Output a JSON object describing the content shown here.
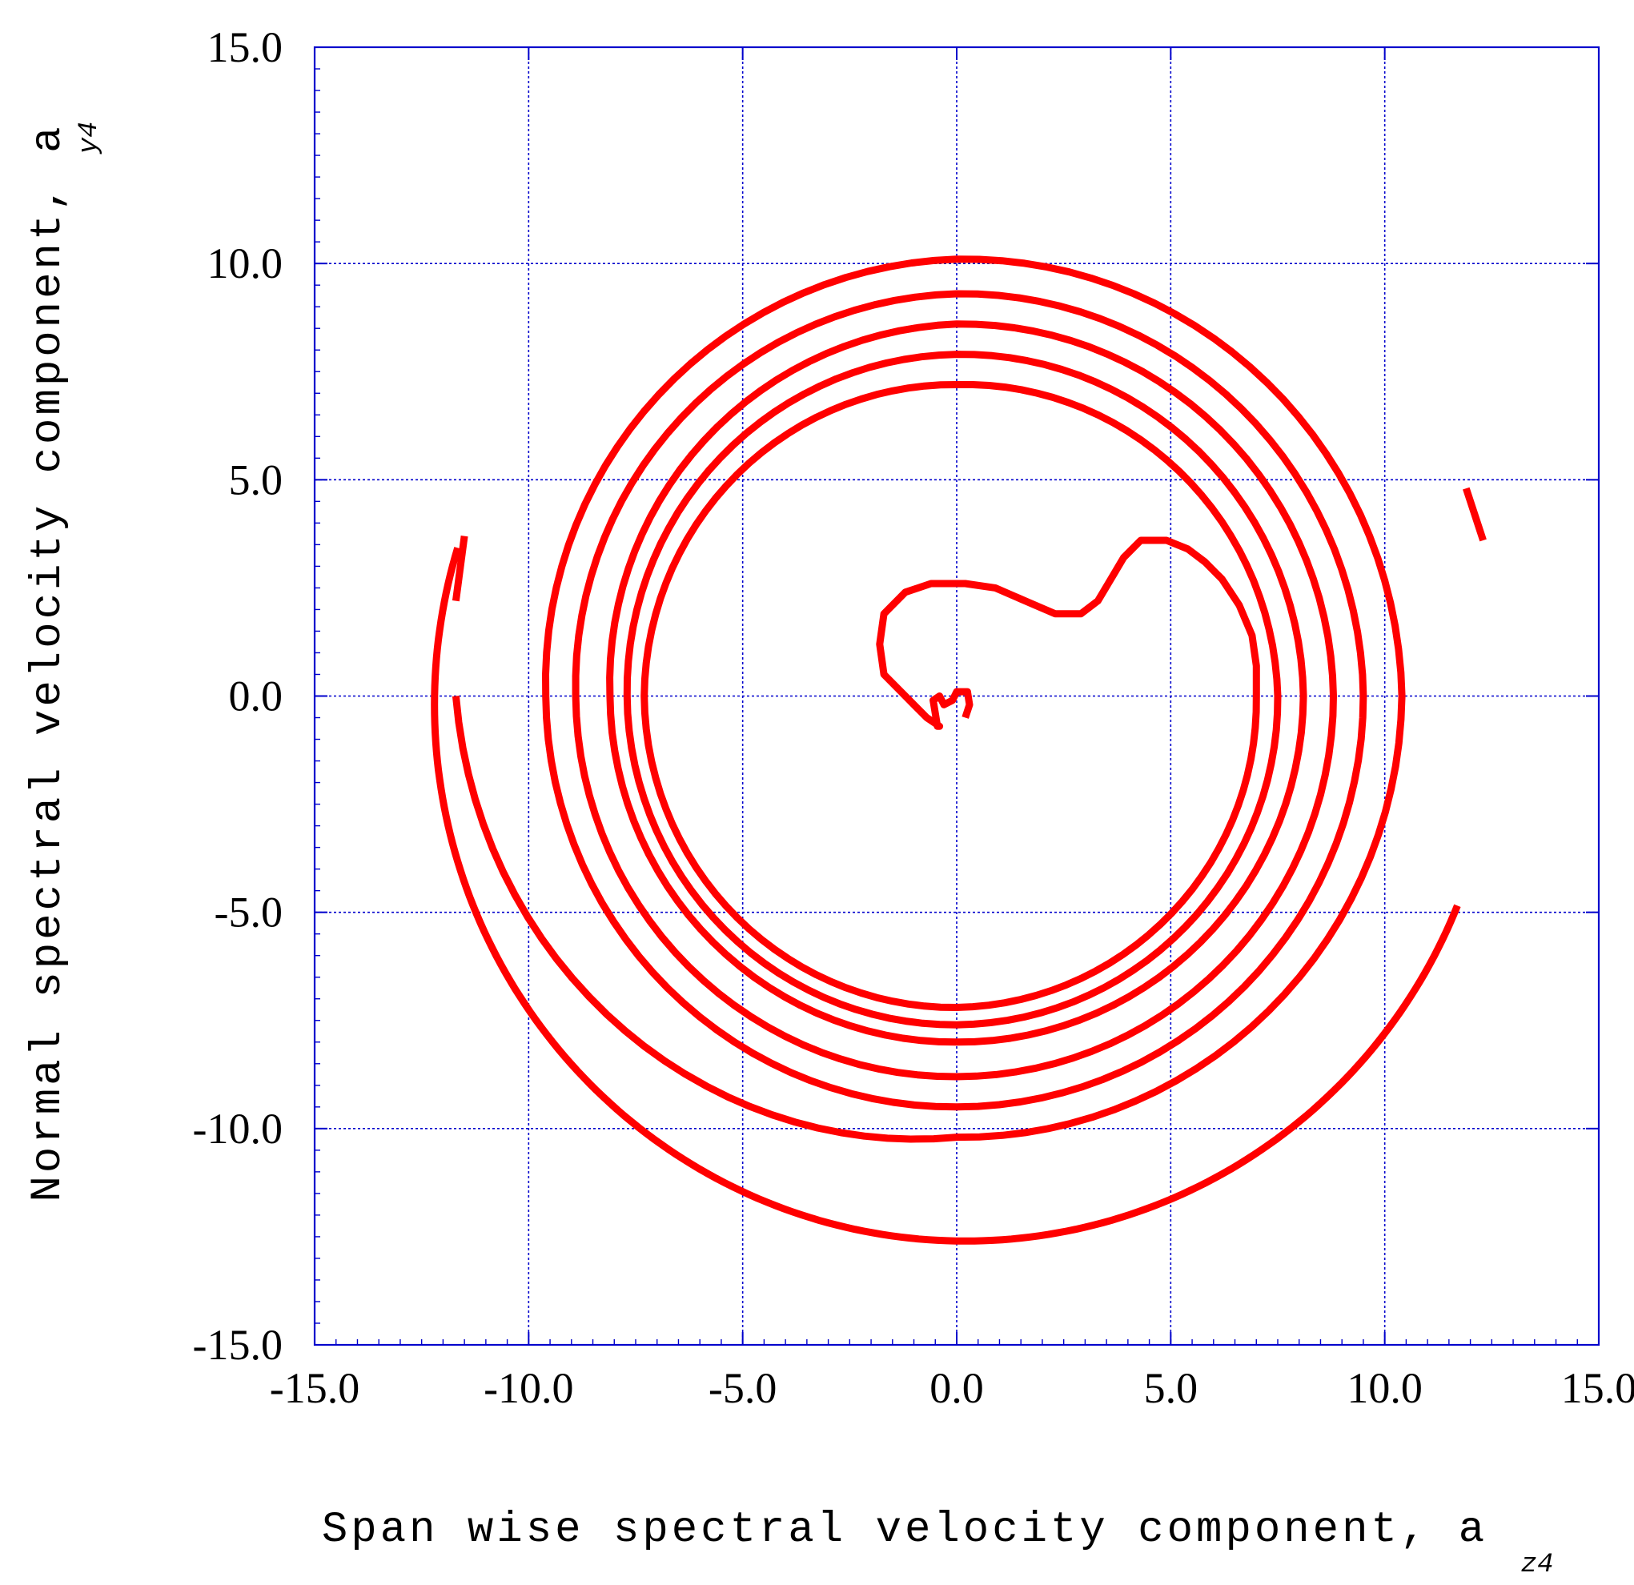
{
  "chart_data": {
    "type": "line",
    "title": "",
    "xlabel": "Span wise spectral velocity component, a",
    "xlabel_subscript": "z4",
    "ylabel": "Normal spectral velocity component, a",
    "ylabel_subscript": "y4",
    "xlim": [
      -15.0,
      15.0
    ],
    "ylim": [
      -15.0,
      15.0
    ],
    "x_ticks": [
      -15.0,
      -10.0,
      -5.0,
      0.0,
      5.0,
      10.0,
      15.0
    ],
    "y_ticks": [
      -15.0,
      -10.0,
      -5.0,
      0.0,
      5.0,
      10.0,
      15.0
    ],
    "x_tick_labels": [
      "-15.0",
      "-10.0",
      "-5.0",
      "0.0",
      "5.0",
      "10.0",
      "15.0"
    ],
    "y_tick_labels": [
      "-15.0",
      "-10.0",
      "-5.0",
      "0.0",
      "5.0",
      "10.0",
      "15.0"
    ],
    "grid": true,
    "colors": {
      "series": "#ff0000",
      "grid": "#0000cc",
      "axes": "#0000cc"
    },
    "series": [
      {
        "points": [
          [
            -0.4,
            -0.7
          ],
          [
            -0.7,
            -0.5
          ],
          [
            -1.0,
            -0.2
          ],
          [
            -1.3,
            0.1
          ],
          [
            -1.7,
            0.5
          ],
          [
            -1.8,
            1.2
          ],
          [
            -1.7,
            1.9
          ],
          [
            -1.2,
            2.4
          ],
          [
            -0.6,
            2.6
          ],
          [
            0.2,
            2.6
          ],
          [
            0.9,
            2.5
          ],
          [
            1.6,
            2.2
          ],
          [
            2.3,
            1.9
          ],
          [
            2.9,
            1.9
          ],
          [
            3.3,
            2.2
          ],
          [
            3.6,
            2.7
          ],
          [
            3.9,
            3.2
          ],
          [
            4.3,
            3.6
          ],
          [
            4.9,
            3.6
          ],
          [
            5.4,
            3.4
          ],
          [
            5.8,
            3.1
          ],
          [
            6.2,
            2.7
          ],
          [
            6.6,
            2.1
          ],
          [
            6.9,
            1.4
          ],
          [
            7.0,
            0.7
          ]
        ],
        "spiral": {
          "start_angle_deg": 0,
          "end_angle_deg": 2125,
          "turn_step_deg": 360,
          "x_center": 0.0,
          "y_center": 0.0,
          "radius_start": 7.0,
          "radius_end": 12.25,
          "radius_table": [
            [
              0,
              7.0
            ],
            [
              90,
              7.2
            ],
            [
              180,
              7.3
            ],
            [
              270,
              7.2
            ],
            [
              360,
              7.5
            ],
            [
              450,
              7.6
            ],
            [
              540,
              7.7
            ],
            [
              630,
              7.9
            ],
            [
              720,
              8.1
            ],
            [
              810,
              8.0
            ],
            [
              900,
              8.1
            ],
            [
              990,
              8.6
            ],
            [
              1080,
              8.8
            ],
            [
              1170,
              8.8
            ],
            [
              1260,
              8.9
            ],
            [
              1350,
              9.3
            ],
            [
              1440,
              9.5
            ],
            [
              1530,
              9.5
            ],
            [
              1620,
              9.6
            ],
            [
              1710,
              10.1
            ],
            [
              1800,
              10.4
            ],
            [
              1890,
              10.2
            ],
            [
              1980,
              11.7
            ],
            [
              2070,
              11.1
            ],
            [
              2125,
              12.25
            ]
          ],
          "endpoint_outer": [
            11.9,
            4.8
          ],
          "endpoint_left": [
            -11.5,
            3.7
          ]
        },
        "start_hook": [
          [
            0.2,
            -0.5
          ],
          [
            0.3,
            -0.2
          ],
          [
            0.25,
            0.1
          ],
          [
            0.0,
            0.1
          ],
          [
            -0.1,
            -0.1
          ],
          [
            -0.3,
            -0.2
          ],
          [
            -0.4,
            0.0
          ],
          [
            -0.55,
            -0.1
          ],
          [
            -0.45,
            -0.7
          ]
        ]
      }
    ]
  }
}
